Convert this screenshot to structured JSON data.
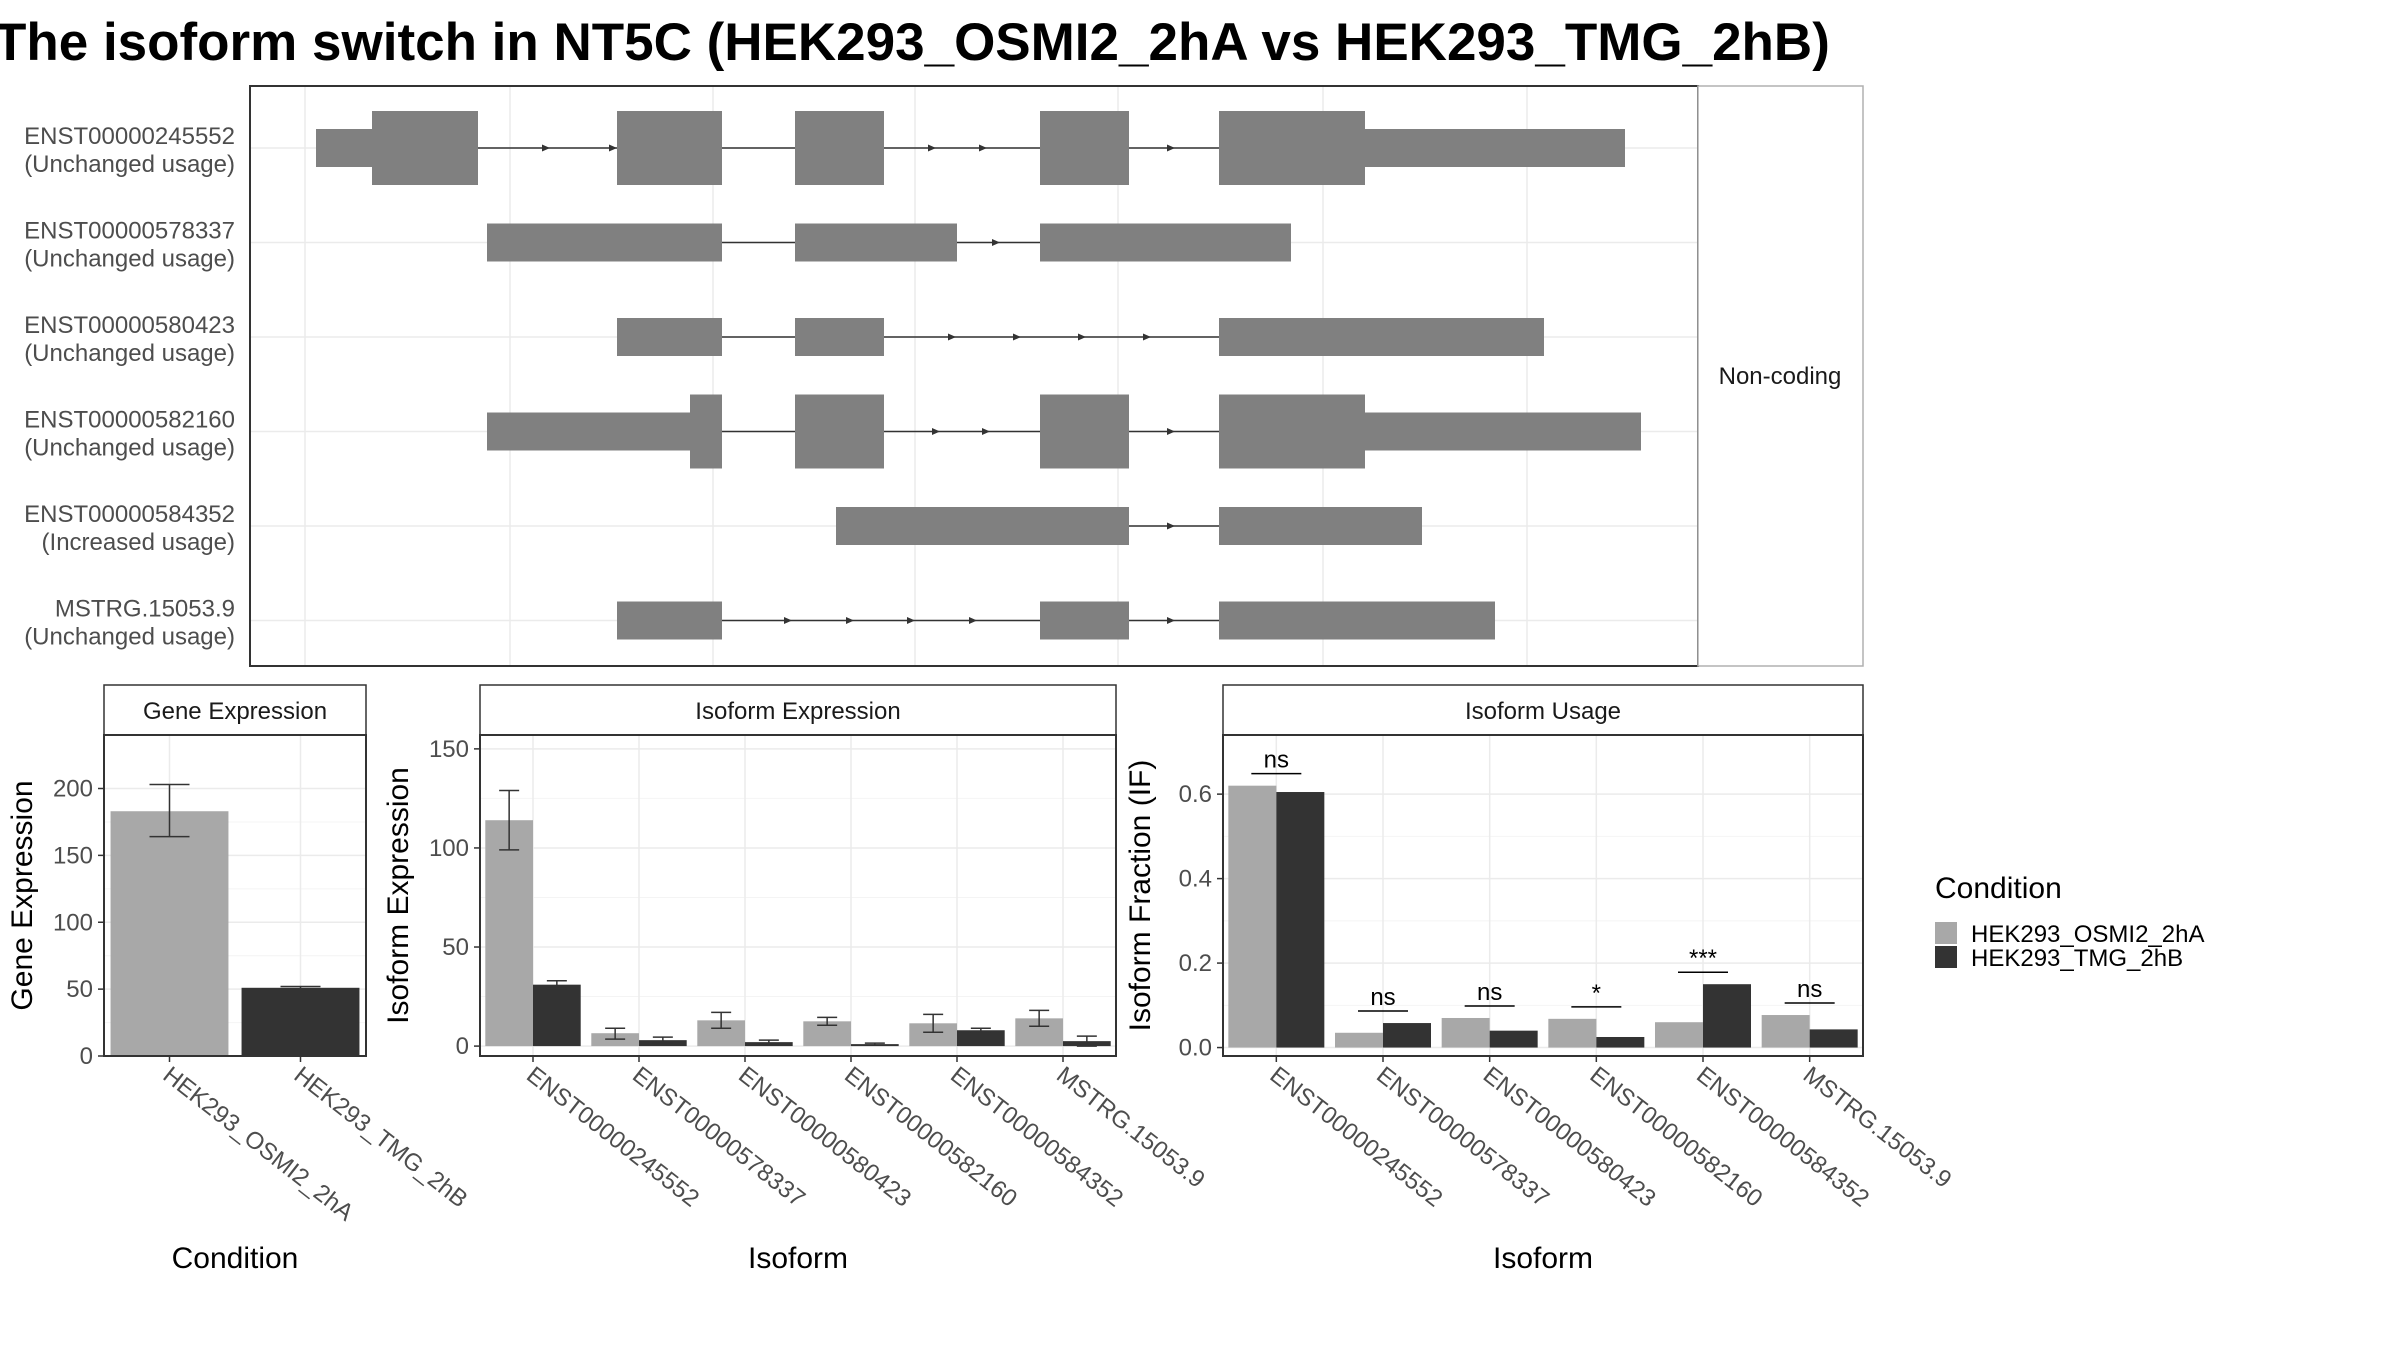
{
  "title": "The isoform switch in NT5C (HEK293_OSMI2_2hA vs HEK293_TMG_2hB)",
  "colors": {
    "cond_a": "#a8a8a8",
    "cond_b": "#333333",
    "exon": "#808080",
    "grid": "#ebebeb",
    "panel_border": "#333333",
    "strip_fill": "#ffffff"
  },
  "structure_panel": {
    "facet_label": "Non-coding",
    "transcripts": [
      {
        "name": "ENST00000245552",
        "usage": "(Unchanged usage)"
      },
      {
        "name": "ENST00000578337",
        "usage": "(Unchanged usage)"
      },
      {
        "name": "ENST00000580423",
        "usage": "(Unchanged usage)"
      },
      {
        "name": "ENST00000582160",
        "usage": "(Unchanged usage)"
      },
      {
        "name": "ENST00000584352",
        "usage": "(Increased usage)"
      },
      {
        "name": "MSTRG.15053.9",
        "usage": "(Unchanged usage)"
      }
    ]
  },
  "legend": {
    "title": "Condition",
    "items": [
      "HEK293_OSMI2_2hA",
      "HEK293_TMG_2hB"
    ]
  },
  "chart_data": [
    {
      "type": "bar",
      "panel": "Gene Expression",
      "xlabel": "Condition",
      "ylabel": "Gene Expression",
      "categories": [
        "HEK293_OSMI2_2hA",
        "HEK293_TMG_2hB"
      ],
      "values": [
        183,
        51
      ],
      "error_low": [
        164,
        50
      ],
      "error_high": [
        203,
        52
      ],
      "yticks": [
        0,
        50,
        100,
        150,
        200
      ],
      "ylim": [
        0,
        240
      ]
    },
    {
      "type": "bar",
      "panel": "Isoform Expression",
      "xlabel": "Isoform",
      "ylabel": "Isoform Expression",
      "categories": [
        "ENST00000245552",
        "ENST00000578337",
        "ENST00000580423",
        "ENST00000582160",
        "ENST00000584352",
        "MSTRG.15053.9"
      ],
      "series": [
        {
          "name": "HEK293_OSMI2_2hA",
          "values": [
            114,
            6.5,
            13,
            12.5,
            11.5,
            14
          ],
          "error_low": [
            99,
            3.5,
            9,
            10.5,
            7,
            10
          ],
          "error_high": [
            129,
            9,
            17,
            14.5,
            16,
            18
          ]
        },
        {
          "name": "HEK293_TMG_2hB",
          "values": [
            31,
            3,
            2,
            1,
            8,
            2.5
          ],
          "error_low": [
            29,
            1.5,
            1,
            0.5,
            7,
            0
          ],
          "error_high": [
            33,
            4.5,
            3,
            1.5,
            9,
            5
          ]
        }
      ],
      "yticks": [
        0,
        50,
        100,
        150
      ],
      "ylim": [
        -5,
        157
      ]
    },
    {
      "type": "bar",
      "panel": "Isoform Usage",
      "xlabel": "Isoform",
      "ylabel": "Isoform Fraction (IF)",
      "categories": [
        "ENST00000245552",
        "ENST00000578337",
        "ENST00000580423",
        "ENST00000582160",
        "ENST00000584352",
        "MSTRG.15053.9"
      ],
      "series": [
        {
          "name": "HEK293_OSMI2_2hA",
          "values": [
            0.62,
            0.035,
            0.07,
            0.068,
            0.06,
            0.077
          ]
        },
        {
          "name": "HEK293_TMG_2hB",
          "values": [
            0.605,
            0.058,
            0.04,
            0.025,
            0.15,
            0.043
          ]
        }
      ],
      "significance": [
        "ns",
        "ns",
        "ns",
        "*",
        "***",
        "ns"
      ],
      "yticks": [
        0.0,
        0.2,
        0.4,
        0.6
      ],
      "ytick_labels": [
        "0.0",
        "0.2",
        "0.4",
        "0.6"
      ],
      "ylim": [
        -0.02,
        0.74
      ]
    }
  ]
}
